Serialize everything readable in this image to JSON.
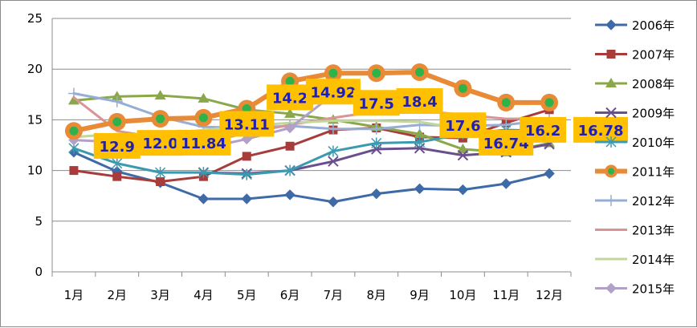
{
  "chart_data": {
    "type": "line",
    "title": "",
    "xlabel": "",
    "ylabel": "",
    "ylim": [
      0,
      25
    ],
    "yticks": [
      0,
      5,
      10,
      15,
      20,
      25
    ],
    "grid": "horizontal",
    "legend_position": "right",
    "categories": [
      "1月",
      "2月",
      "3月",
      "4月",
      "5月",
      "6月",
      "7月",
      "8月",
      "9月",
      "10月",
      "11月",
      "12月"
    ],
    "series": [
      {
        "name": "2006年",
        "color": "#3e6aa8",
        "marker": "diamond",
        "values": [
          11.8,
          9.9,
          8.8,
          7.2,
          7.2,
          7.6,
          6.9,
          7.7,
          8.2,
          8.1,
          8.7,
          9.7
        ]
      },
      {
        "name": "2007年",
        "color": "#a83c3a",
        "marker": "square",
        "values": [
          10.0,
          9.4,
          8.9,
          9.4,
          11.4,
          12.4,
          14.0,
          14.2,
          13.3,
          13.2,
          14.7,
          16.0
        ]
      },
      {
        "name": "2008年",
        "color": "#8aa84a",
        "marker": "triangle",
        "values": [
          16.9,
          17.3,
          17.4,
          17.1,
          16.0,
          15.6,
          15.0,
          14.3,
          13.6,
          12.1,
          11.8,
          12.7
        ]
      },
      {
        "name": "2009年",
        "color": "#6a4f8e",
        "marker": "x",
        "values": [
          null,
          null,
          null,
          9.8,
          9.7,
          10.0,
          10.9,
          12.1,
          12.2,
          11.5,
          11.8,
          12.6
        ]
      },
      {
        "name": "2010年",
        "color": "#3b9aaf",
        "marker": "star",
        "values": [
          12.2,
          10.7,
          9.8,
          9.8,
          9.6,
          10.0,
          11.9,
          12.7,
          12.8,
          13.6,
          14.0,
          13.9
        ]
      },
      {
        "name": "2011年",
        "color": "#e88a36",
        "marker": "circle",
        "values": [
          13.9,
          14.8,
          15.1,
          15.2,
          16.1,
          18.8,
          19.6,
          19.6,
          19.7,
          18.1,
          16.7,
          16.7
        ]
      },
      {
        "name": "2012年",
        "color": "#96aed4",
        "marker": "plus",
        "values": [
          17.6,
          16.8,
          15.3,
          14.3,
          14.2,
          14.4,
          14.1,
          14.1,
          14.5,
          14.4,
          14.5,
          15.0
        ]
      },
      {
        "name": "2013年",
        "color": "#d99594",
        "marker": "none",
        "values": [
          17.2,
          13.9,
          13.2,
          12.7,
          13.7,
          14.5,
          15.2,
          15.8,
          15.9,
          15.5,
          15.1,
          15.1
        ]
      },
      {
        "name": "2014年",
        "color": "#c3d69b",
        "marker": "none",
        "values": [
          13.3,
          13.6,
          13.5,
          14.0,
          14.4,
          14.7,
          14.9,
          14.9,
          14.8,
          14.1,
          13.8,
          13.2
        ]
      },
      {
        "name": "2015年",
        "color": "#b2a1c7",
        "marker": "diamond",
        "values": [
          13.0,
          12.8,
          12.2,
          12.2,
          13.1,
          14.2,
          17.5,
          null,
          null,
          null,
          null,
          null
        ]
      }
    ],
    "data_labels": [
      {
        "index": 1,
        "text": "12.9"
      },
      {
        "index": 2,
        "text": "12.0"
      },
      {
        "index": 3,
        "text": "11.84"
      },
      {
        "index": 4,
        "text": "13.11"
      },
      {
        "index": 5,
        "text": "14.2"
      },
      {
        "index": 6,
        "text": "14.92"
      },
      {
        "index": 7,
        "text": "17.5"
      },
      {
        "index": 8,
        "text": "18.4"
      },
      {
        "index": 9,
        "text": "17.6"
      },
      {
        "index": 10,
        "text": "16.74"
      },
      {
        "index": 11,
        "text": "16.2"
      },
      {
        "index": 11,
        "text": "16.78"
      }
    ],
    "data_label_style": {
      "background": "#ffc000",
      "text_color": "#1f1fb4"
    }
  }
}
